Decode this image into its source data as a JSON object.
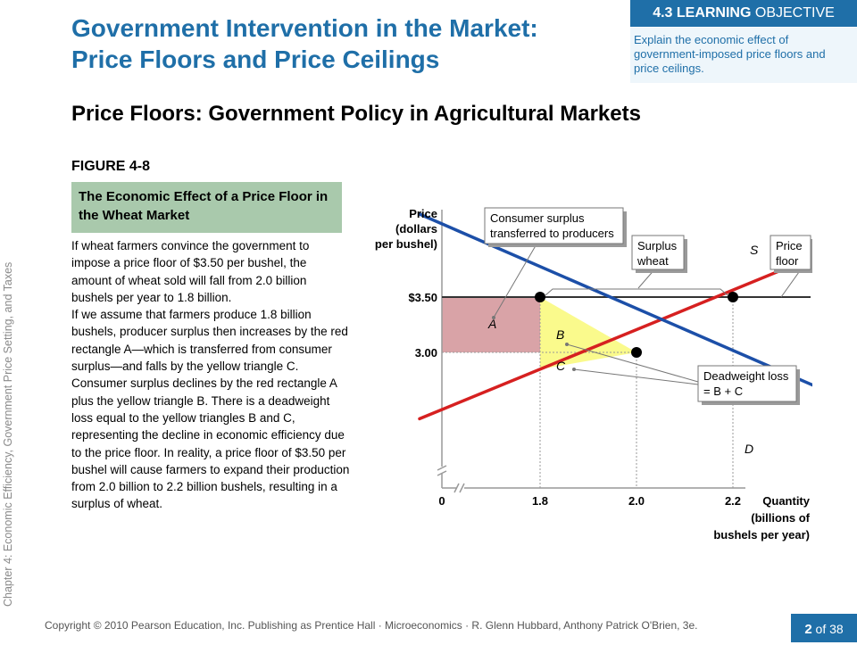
{
  "slide": {
    "title_line1": "Government Intervention in the Market:",
    "title_line2": "Price Floors and Price Ceilings",
    "objective_badge_bold": "4.3 LEARNING",
    "objective_badge_rest": " OBJECTIVE",
    "objective_text": "Explain the economic effect of government-imposed price floors and price ceilings.",
    "subtitle": "Price Floors: Government Policy in Agricultural Markets",
    "figure_label": "FIGURE 4-8",
    "figure_caption": "The Economic Effect of a Price Floor in the Wheat Market",
    "paragraphs": [
      "If wheat farmers convince the government to impose a price floor of $3.50 per bushel, the amount of wheat sold will fall from 2.0 billion bushels per year to 1.8 billion.",
      "If we assume that farmers produce 1.8 billion bushels, producer surplus then increases by the red rectangle A—which is transferred from consumer surplus—and falls by the yellow triangle C.",
      "Consumer surplus declines by the red rectangle A plus the yellow triangle B. There is a deadweight loss equal to the yellow triangles B and C, representing the decline in economic efficiency due to the price floor. In reality, a price floor of $3.50 per bushel will cause farmers to expand their production from 2.0 billion to 2.2 billion bushels, resulting in a surplus of wheat."
    ],
    "side_text": "Chapter 4: Economic Efficiency, Government Price Setting, and Taxes",
    "footer": "Copyright © 2010 Pearson Education, Inc. Publishing as Prentice Hall · Microeconomics · R. Glenn Hubbard, Anthony Patrick O'Brien, 3e.",
    "page_current": "2",
    "page_total_label": " of 38"
  },
  "chart_data": {
    "type": "line",
    "title": "",
    "ylabel_lines": [
      "Price",
      "(dollars",
      "per bushel)"
    ],
    "xlabel_lines": [
      "Quantity",
      "(billions of",
      "bushels per year)"
    ],
    "origin_label": "0",
    "x_ticks": [
      {
        "value": 1.8,
        "label": "1.8"
      },
      {
        "value": 2.0,
        "label": "2.0"
      },
      {
        "value": 2.2,
        "label": "2.2"
      }
    ],
    "y_ticks": [
      {
        "value": 3.5,
        "label": "$3.50"
      },
      {
        "value": 3.0,
        "label": "3.00"
      }
    ],
    "axis_break": true,
    "series": [
      {
        "name": "S",
        "color": "#d62020",
        "points": [
          [
            1.55,
            2.4
          ],
          [
            2.36,
            3.85
          ]
        ]
      },
      {
        "name": "D",
        "color": "#1c4fa8",
        "points": [
          [
            1.55,
            4.25
          ],
          [
            2.41,
            2.62
          ]
        ]
      }
    ],
    "price_floor": {
      "value": 3.5,
      "label_line1": "Price",
      "label_line2": "floor",
      "color": "#333333"
    },
    "points": [
      {
        "x": 1.8,
        "y": 3.5
      },
      {
        "x": 2.0,
        "y": 3.0
      },
      {
        "x": 2.2,
        "y": 3.5
      }
    ],
    "areas": [
      {
        "label": "A",
        "color": "#d9a3a7",
        "meaning": "Consumer surplus transferred to producers"
      },
      {
        "label": "B",
        "color": "#fafa8c"
      },
      {
        "label": "C",
        "color": "#fafa8c"
      }
    ],
    "annotations": [
      {
        "id": "consumer-surplus",
        "line1": "Consumer surplus",
        "line2": "transferred to producers"
      },
      {
        "id": "surplus-wheat",
        "line1": "Surplus",
        "line2": "wheat"
      },
      {
        "id": "deadweight-loss",
        "line1": "Deadweight loss",
        "line2": "= B + C"
      }
    ],
    "colors": {
      "supply": "#d62020",
      "demand": "#1c4fa8",
      "area_a": "#d9a3a7",
      "area_bc": "#fafa8c",
      "accent": "#1f6fa8"
    }
  }
}
